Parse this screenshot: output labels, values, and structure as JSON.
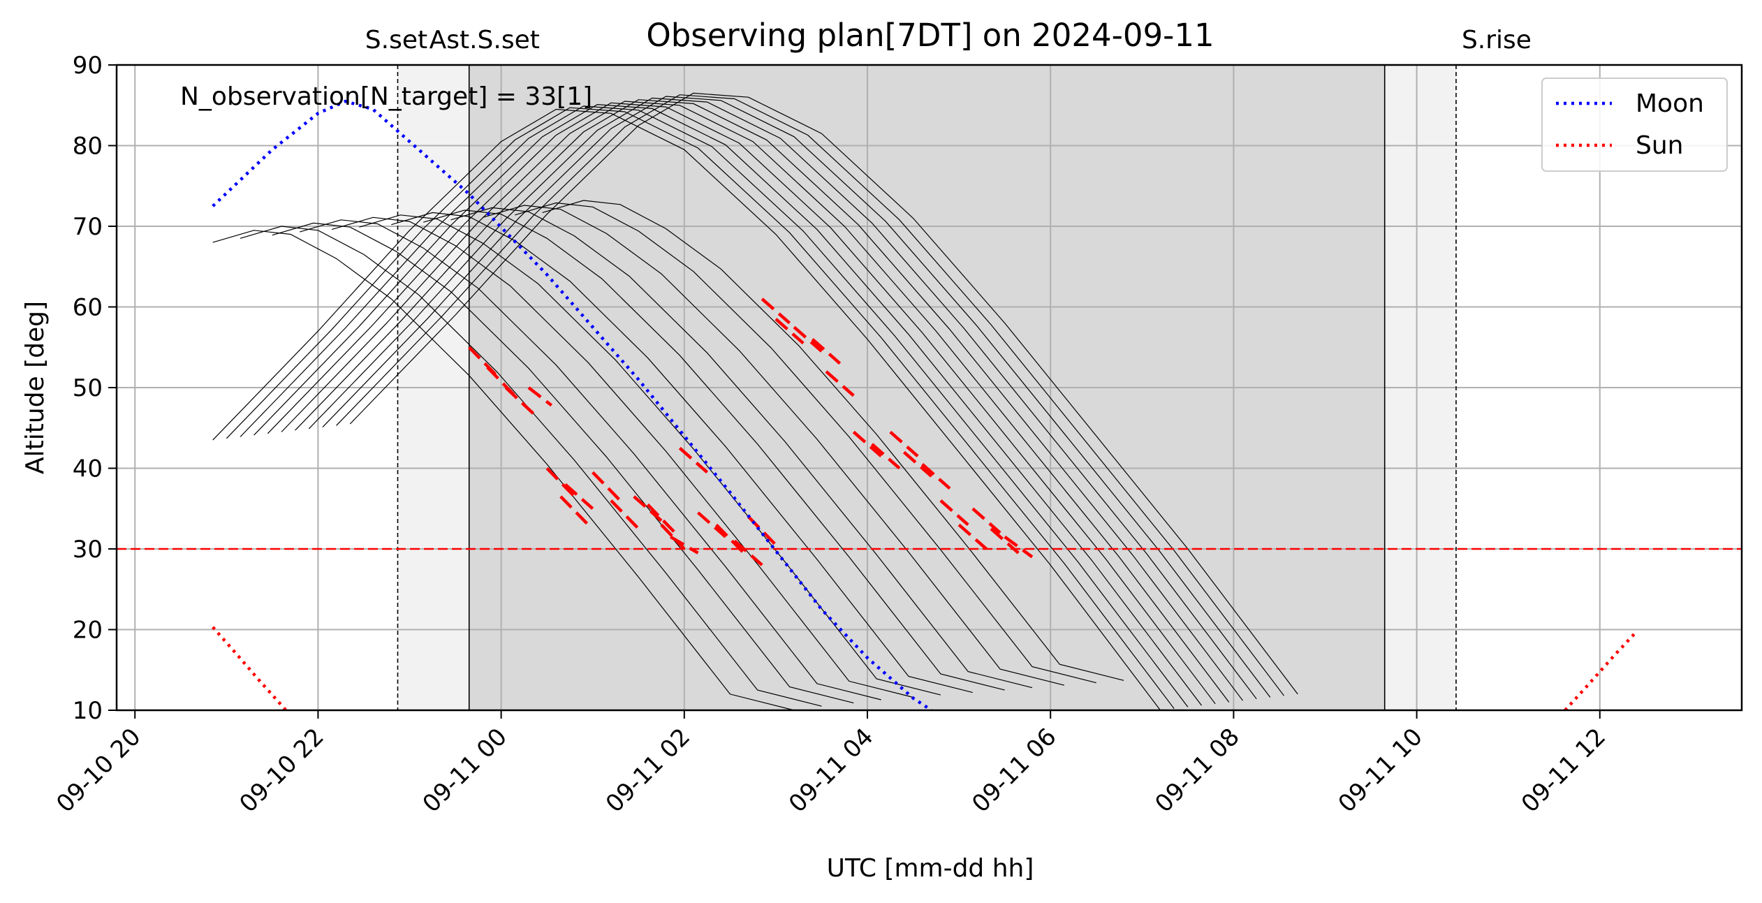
{
  "chart_data": {
    "type": "line",
    "title": "Observing plan[7DT] on 2024-09-11",
    "xlabel": "UTC [mm-dd hh]",
    "ylabel": "Altitude [deg]",
    "xlim": [
      -0.2,
      17.55
    ],
    "ylim": [
      10,
      90
    ],
    "x_unit": "hours after 2024-09-10 20:00 UTC",
    "x_ticks": [
      {
        "value": 0,
        "label": "09-10 20"
      },
      {
        "value": 2,
        "label": "09-10 22"
      },
      {
        "value": 4,
        "label": "09-11 00"
      },
      {
        "value": 6,
        "label": "09-11 02"
      },
      {
        "value": 8,
        "label": "09-11 04"
      },
      {
        "value": 10,
        "label": "09-11 06"
      },
      {
        "value": 12,
        "label": "09-11 08"
      },
      {
        "value": 14,
        "label": "09-11 10"
      },
      {
        "value": 16,
        "label": "09-11 12"
      }
    ],
    "y_ticks": [
      10,
      20,
      30,
      40,
      50,
      60,
      70,
      80,
      90
    ],
    "grid": true,
    "legend_placement": "upper right",
    "annotation": "N_observation[N_target] = 33[1]",
    "altitude_limit": 30,
    "twilight": {
      "sunset": 2.87,
      "astro_set": 3.65,
      "astro_rise": 13.65,
      "sunrise": 14.43
    },
    "top_labels": [
      {
        "x": 2.87,
        "text": "S.set"
      },
      {
        "x": 3.65,
        "text": "Ast.S.set"
      },
      {
        "x": 14.43,
        "text": "S.rise"
      }
    ],
    "series": [
      {
        "name": "Moon",
        "style": "dotted",
        "color": "#0000ff",
        "x": [
          0.85,
          1.5,
          2.0,
          2.3,
          2.6,
          3.0,
          3.65,
          4.5,
          5.5,
          6.5,
          7.5,
          8.0,
          8.5,
          8.7
        ],
        "y": [
          72.5,
          79.5,
          84.0,
          85.5,
          84.5,
          80.5,
          74.0,
          64.0,
          51.0,
          37.0,
          22.5,
          16.5,
          11.5,
          10.0
        ]
      },
      {
        "name": "Sun",
        "style": "dotted",
        "color": "#ff0000",
        "segments": [
          {
            "x": [
              0.85,
              1.1,
              1.35,
              1.65
            ],
            "y": [
              20.3,
              17.1,
              13.8,
              10.0
            ]
          },
          {
            "x": [
              15.62,
              15.9,
              16.15,
              16.38
            ],
            "y": [
              10.0,
              13.5,
              16.7,
              19.5
            ]
          }
        ]
      }
    ],
    "targets": {
      "description": "target altitude tracks",
      "group_a": {
        "x": [
          0.85,
          1.3,
          1.7,
          2.2,
          2.8,
          3.65,
          4.5,
          5.5,
          6.5,
          7.2
        ],
        "y": [
          68.0,
          69.5,
          69.0,
          66.0,
          61.0,
          51.5,
          40.5,
          26.5,
          12.0,
          10.0
        ],
        "offsets": [
          0.0,
          0.3,
          0.65,
          0.95,
          1.3,
          1.6,
          1.95,
          2.3,
          2.6,
          2.95,
          3.3,
          3.6
        ],
        "amplitude_gain": [
          0.0,
          0.5,
          0.9,
          1.3,
          1.6,
          1.9,
          2.2,
          2.5,
          2.8,
          3.1,
          3.4,
          3.7
        ]
      },
      "group_b": {
        "x": [
          0.85,
          2.0,
          3.0,
          4.0,
          4.6,
          5.2,
          6.0,
          7.0,
          8.0,
          9.0,
          10.0,
          11.2
        ],
        "y": [
          43.5,
          57.0,
          69.5,
          80.5,
          84.5,
          84.0,
          79.5,
          69.0,
          56.0,
          42.0,
          28.0,
          10.0
        ],
        "offsets": [
          0.0,
          0.15,
          0.3,
          0.45,
          0.6,
          0.75,
          0.9,
          1.05,
          1.2,
          1.35,
          1.5
        ],
        "amplitude_gain": [
          0.0,
          0.2,
          0.4,
          0.6,
          0.8,
          1.0,
          1.2,
          1.4,
          1.6,
          1.8,
          2.0
        ]
      }
    },
    "observations": [
      {
        "x": [
          3.65,
          3.95
        ],
        "y": [
          55.0,
          51.5
        ]
      },
      {
        "x": [
          3.85,
          4.15
        ],
        "y": [
          52.5,
          49.0
        ]
      },
      {
        "x": [
          4.05,
          4.35
        ],
        "y": [
          50.0,
          46.8
        ]
      },
      {
        "x": [
          4.3,
          4.55
        ],
        "y": [
          50.0,
          47.8
        ]
      },
      {
        "x": [
          4.5,
          4.8
        ],
        "y": [
          40.0,
          36.5
        ]
      },
      {
        "x": [
          4.65,
          4.95
        ],
        "y": [
          36.5,
          33.0
        ]
      },
      {
        "x": [
          5.0,
          5.3
        ],
        "y": [
          39.5,
          36.0
        ]
      },
      {
        "x": [
          5.2,
          5.5
        ],
        "y": [
          36.0,
          32.5
        ]
      },
      {
        "x": [
          5.45,
          5.75
        ],
        "y": [
          36.5,
          33.5
        ]
      },
      {
        "x": [
          5.6,
          5.9
        ],
        "y": [
          35.5,
          32.0
        ]
      },
      {
        "x": [
          5.75,
          6.0
        ],
        "y": [
          33.0,
          30.0
        ]
      },
      {
        "x": [
          5.95,
          6.25
        ],
        "y": [
          42.5,
          39.5
        ]
      },
      {
        "x": [
          6.15,
          6.45
        ],
        "y": [
          34.5,
          31.5
        ]
      },
      {
        "x": [
          6.35,
          6.65
        ],
        "y": [
          33.0,
          29.5
        ]
      },
      {
        "x": [
          6.55,
          6.85
        ],
        "y": [
          31.0,
          28.0
        ]
      },
      {
        "x": [
          6.7,
          7.0
        ],
        "y": [
          34.0,
          30.5
        ]
      },
      {
        "x": [
          6.85,
          7.15
        ],
        "y": [
          61.0,
          58.0
        ]
      },
      {
        "x": [
          7.0,
          7.3
        ],
        "y": [
          58.5,
          55.5
        ]
      },
      {
        "x": [
          7.2,
          7.5
        ],
        "y": [
          57.5,
          54.5
        ]
      },
      {
        "x": [
          7.4,
          7.7
        ],
        "y": [
          56.0,
          53.0
        ]
      },
      {
        "x": [
          7.55,
          7.85
        ],
        "y": [
          52.0,
          49.0
        ]
      },
      {
        "x": [
          7.85,
          8.15
        ],
        "y": [
          44.5,
          41.5
        ]
      },
      {
        "x": [
          8.05,
          8.35
        ],
        "y": [
          43.0,
          40.0
        ]
      },
      {
        "x": [
          8.25,
          8.55
        ],
        "y": [
          44.5,
          41.5
        ]
      },
      {
        "x": [
          8.4,
          8.7
        ],
        "y": [
          42.0,
          39.0
        ]
      },
      {
        "x": [
          8.6,
          8.9
        ],
        "y": [
          40.5,
          37.5
        ]
      },
      {
        "x": [
          8.8,
          9.1
        ],
        "y": [
          36.0,
          33.0
        ]
      },
      {
        "x": [
          9.0,
          9.3
        ],
        "y": [
          33.0,
          30.0
        ]
      },
      {
        "x": [
          9.15,
          9.45
        ],
        "y": [
          35.0,
          32.0
        ]
      },
      {
        "x": [
          9.35,
          9.65
        ],
        "y": [
          32.5,
          29.5
        ]
      },
      {
        "x": [
          9.5,
          9.8
        ],
        "y": [
          31.5,
          29.0
        ]
      },
      {
        "x": [
          4.7,
          5.0
        ],
        "y": [
          38.0,
          35.0
        ]
      },
      {
        "x": [
          5.85,
          6.15
        ],
        "y": [
          31.5,
          29.5
        ]
      }
    ],
    "legend": [
      {
        "label": "Moon",
        "color": "#0000ff"
      },
      {
        "label": "Sun",
        "color": "#ff0000"
      }
    ]
  }
}
